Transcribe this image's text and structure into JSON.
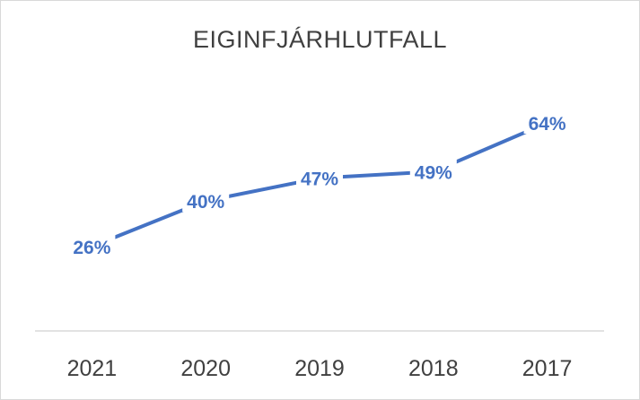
{
  "chart_data": {
    "type": "line",
    "title": "EIGINFJÁRHLUTFALL",
    "categories": [
      "2021",
      "2020",
      "2019",
      "2018",
      "2017"
    ],
    "series": [
      {
        "values": [
          26,
          40,
          47,
          49,
          64
        ],
        "data_labels": [
          "26%",
          "40%",
          "47%",
          "49%",
          "64%"
        ],
        "color": "#4472c4"
      }
    ],
    "xlabel": "",
    "ylabel": "",
    "ylim": [
      0,
      80
    ],
    "grid": false,
    "legend": "none"
  }
}
